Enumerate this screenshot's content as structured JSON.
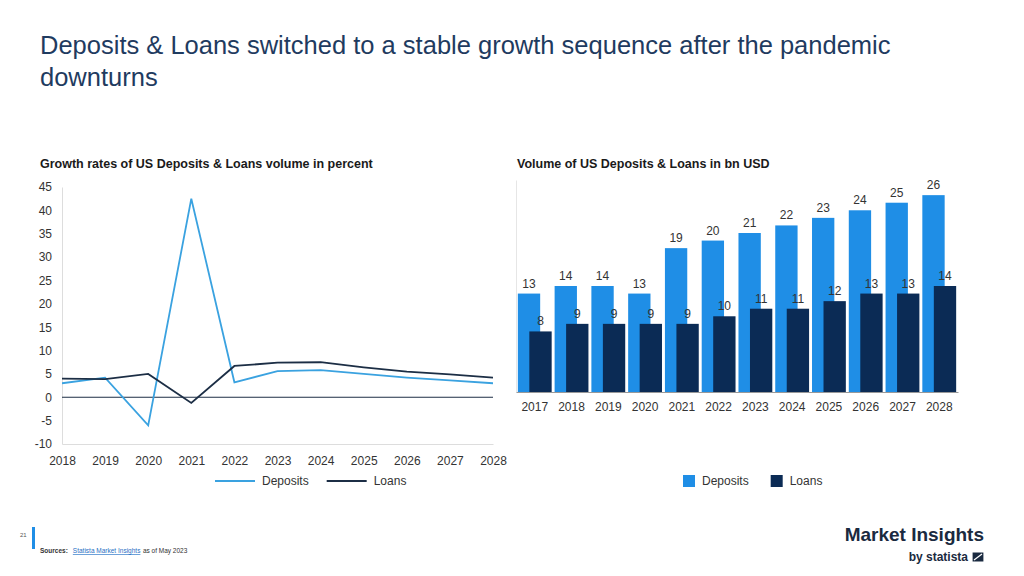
{
  "page": {
    "title": "Deposits & Loans switched to a stable growth sequence after the pandemic downturns",
    "page_number": "21",
    "source_label": "Sources:",
    "source_link": "Statista Market Insights",
    "source_note": "as of May 2023",
    "brand": "Market Insights",
    "brand_sub": "by statista"
  },
  "chart_data": [
    {
      "type": "line",
      "title": "Growth rates of US Deposits & Loans volume in percent",
      "x": [
        2018,
        2019,
        2020,
        2021,
        2022,
        2023,
        2024,
        2025,
        2026,
        2027,
        2028
      ],
      "xlim": [
        2018,
        2028
      ],
      "xticks": [
        2018,
        2019,
        2020,
        2021,
        2022,
        2023,
        2024,
        2025,
        2026,
        2027,
        2028
      ],
      "ylim": [
        -10,
        45
      ],
      "yticks": [
        -10,
        -5,
        0,
        5,
        10,
        15,
        20,
        25,
        30,
        35,
        40,
        45
      ],
      "grid": false,
      "legend": "bottom",
      "series": [
        {
          "name": "Deposits",
          "color": "#3aa2e0",
          "values": [
            3.0,
            4.2,
            -6.0,
            42.5,
            3.2,
            5.6,
            5.8,
            5.0,
            4.2,
            3.6,
            3.0
          ]
        },
        {
          "name": "Loans",
          "color": "#1c2e45",
          "values": [
            4.0,
            3.9,
            5.0,
            -1.2,
            6.7,
            7.4,
            7.5,
            6.4,
            5.5,
            4.9,
            4.2
          ]
        }
      ]
    },
    {
      "type": "bar",
      "title": "Volume of US Deposits & Loans in bn USD",
      "categories": [
        "2017",
        "2018",
        "2019",
        "2020",
        "2021",
        "2022",
        "2023",
        "2024",
        "2025",
        "2026",
        "2027",
        "2028"
      ],
      "ylim": [
        0,
        28
      ],
      "tick_labels": "x",
      "data_labels": true,
      "grid": false,
      "legend": "bottom",
      "series": [
        {
          "name": "Deposits",
          "color": "#1f8ee6",
          "values": [
            13,
            14,
            14,
            13,
            19,
            20,
            21,
            22,
            23,
            24,
            25,
            26
          ]
        },
        {
          "name": "Loans",
          "color": "#0b2b55",
          "values": [
            8,
            9,
            9,
            9,
            9,
            10,
            11,
            11,
            12,
            13,
            13,
            14
          ]
        }
      ]
    }
  ]
}
